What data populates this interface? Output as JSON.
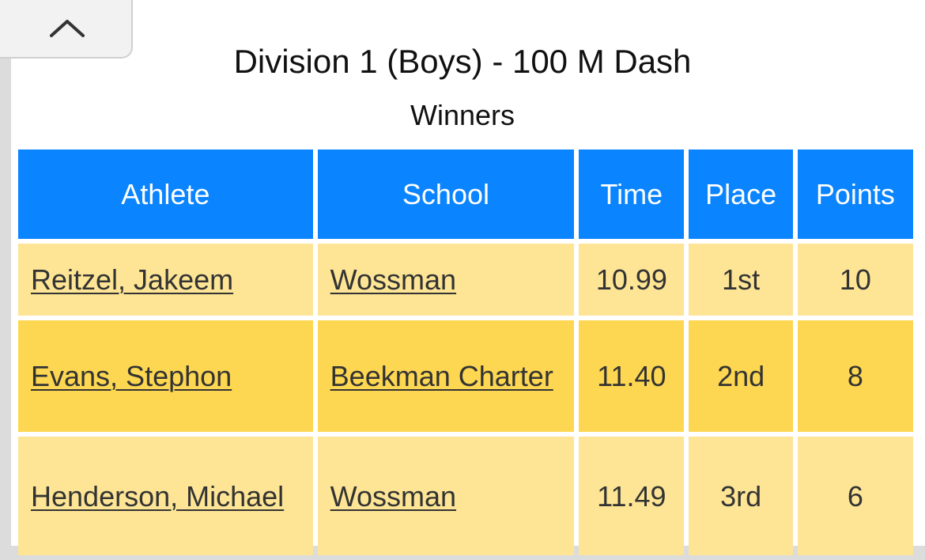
{
  "header": {
    "title": "Division 1 (Boys) - 100 M Dash",
    "subtitle": "Winners",
    "collapse_icon": "chevron-up-icon"
  },
  "table": {
    "columns": [
      "Athlete",
      "School",
      "Time",
      "Place",
      "Points"
    ],
    "rows": [
      {
        "athlete": "Reitzel, Jakeem",
        "school": "Wossman",
        "time": "10.99",
        "place": "1st",
        "points": "10"
      },
      {
        "athlete": "Evans, Stephon",
        "school": "Beekman Charter",
        "time": "11.40",
        "place": "2nd",
        "points": "8"
      },
      {
        "athlete": "Henderson, Michael",
        "school": "Wossman",
        "time": "11.49",
        "place": "3rd",
        "points": "6"
      }
    ]
  },
  "colors": {
    "header_bg": "#0a84ff",
    "row_light": "#fde595",
    "row_dark": "#fdd751",
    "link_text": "#333333"
  }
}
